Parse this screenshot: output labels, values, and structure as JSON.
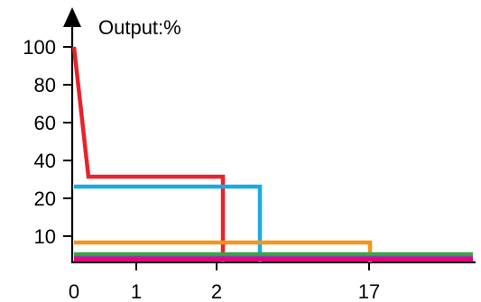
{
  "chart_data": {
    "type": "line",
    "title": "",
    "xlabel": "",
    "ylabel": "Output:%",
    "x_ticks": [
      "0",
      "1",
      "2",
      "17"
    ],
    "y_ticks": [
      "10",
      "20",
      "40",
      "60",
      "80",
      "100"
    ],
    "grid": false,
    "legend": "none",
    "series": [
      {
        "color": "#e8232a",
        "points": [
          [
            0,
            100
          ],
          [
            0.2,
            30
          ],
          [
            2.1,
            30
          ],
          [
            2.1,
            0
          ]
        ]
      },
      {
        "color": "#1aaae2",
        "points": [
          [
            0,
            25
          ],
          [
            2.6,
            25
          ],
          [
            2.6,
            0
          ]
        ]
      },
      {
        "color": "#f7941d",
        "points": [
          [
            0,
            7
          ],
          [
            17,
            7
          ],
          [
            17,
            0
          ]
        ]
      },
      {
        "color": "#3aa544",
        "points": [
          [
            0,
            1.8
          ],
          [
            21,
            1.8
          ]
        ]
      },
      {
        "color": "#8b3ea0",
        "points": [
          [
            0,
            1
          ],
          [
            21,
            1
          ]
        ]
      },
      {
        "color": "#e6007e",
        "points": [
          [
            0,
            0.6
          ],
          [
            21,
            0.6
          ]
        ]
      }
    ]
  }
}
